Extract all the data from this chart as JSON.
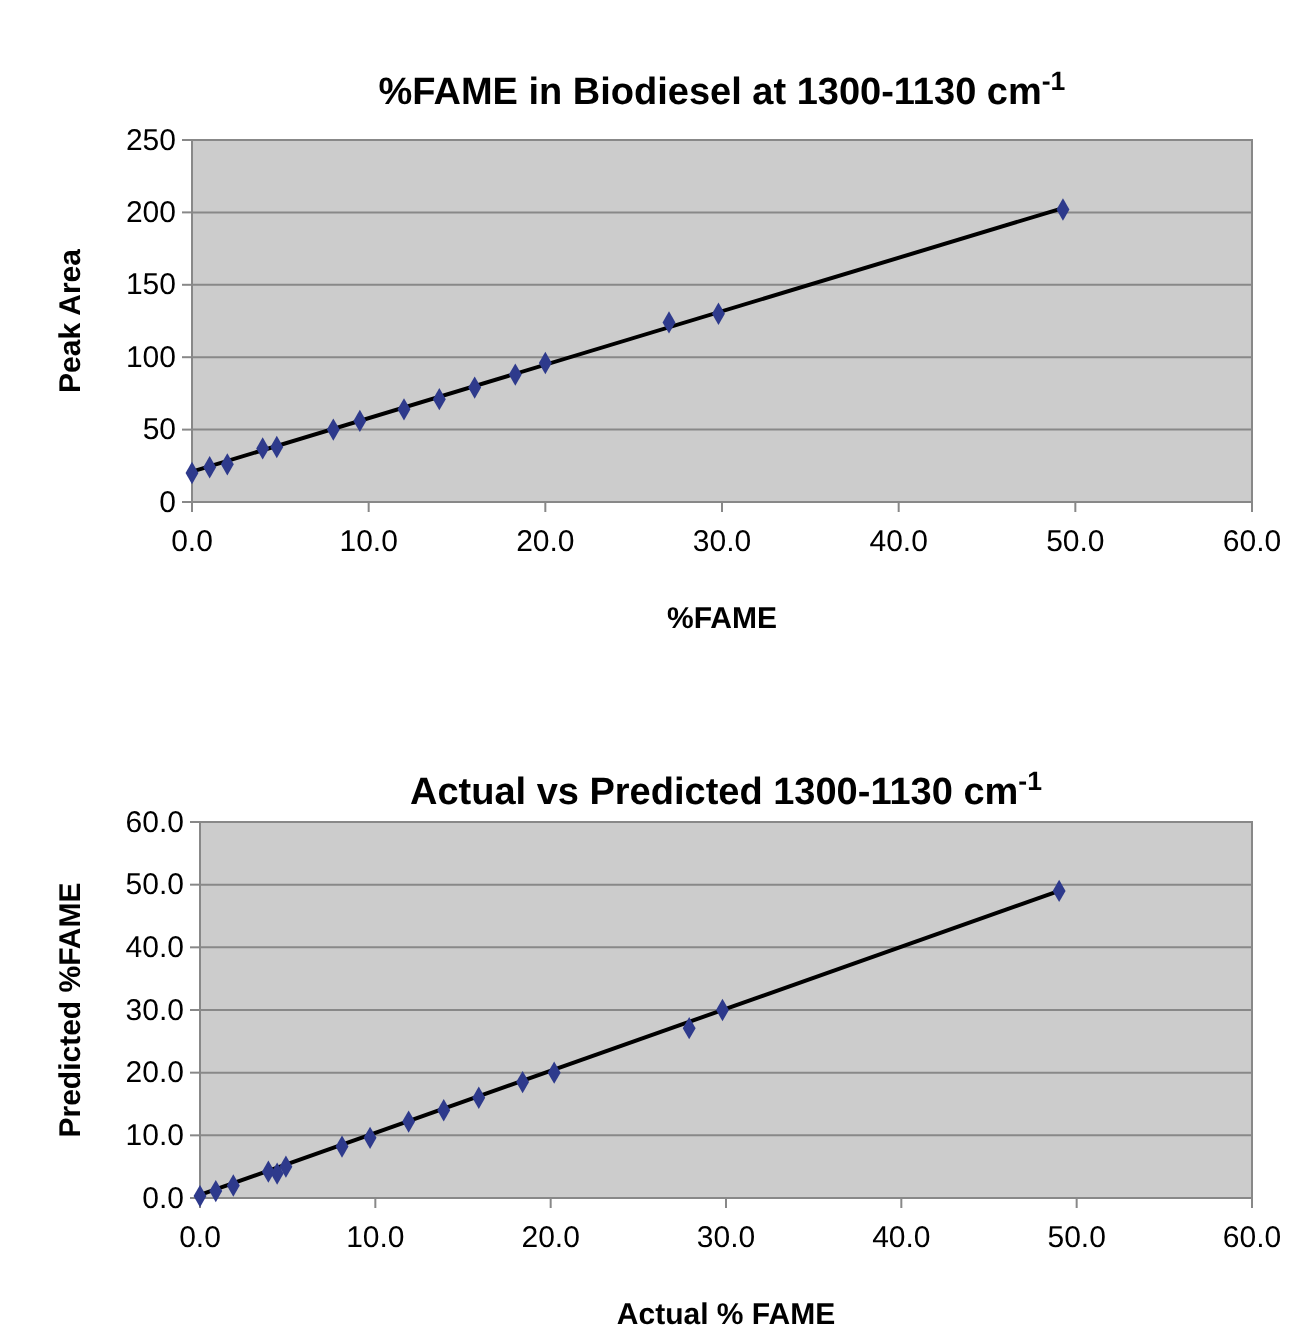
{
  "chart_data": [
    {
      "type": "scatter",
      "title": "%FAME in Biodiesel at 1300-1130 cm$^{-1}$",
      "xlabel": "%FAME",
      "ylabel": "Peak Area",
      "grid": "y",
      "xlim": [
        0,
        60
      ],
      "xticks": [
        {
          "value": 0,
          "label": "0.0"
        },
        {
          "value": 10,
          "label": "10.0"
        },
        {
          "value": 20,
          "label": "20.0"
        },
        {
          "value": 30,
          "label": "30.0"
        },
        {
          "value": 40,
          "label": "40.0"
        },
        {
          "value": 50,
          "label": "50.0"
        },
        {
          "value": 60,
          "label": "60.0"
        }
      ],
      "ylim": [
        0,
        250
      ],
      "yticks": [
        0,
        50,
        100,
        150,
        200,
        250
      ],
      "series": [
        {
          "marker": "diamond",
          "color": "#2e3a8c",
          "x": [
            0,
            1,
            2,
            4,
            4.8,
            8,
            9.5,
            12,
            14,
            16,
            18.3,
            20,
            27,
            29.8,
            49.3
          ],
          "values": [
            20,
            24,
            26,
            37,
            38,
            50,
            56,
            64,
            71,
            79,
            88,
            96,
            124,
            130,
            202
          ]
        },
        {
          "type": "line",
          "marker": "none",
          "color": "#000000",
          "x": [
            0,
            49.3
          ],
          "values": [
            21,
            203
          ]
        }
      ]
    },
    {
      "type": "scatter",
      "title": "Actual vs Predicted 1300-1130 cm$^{-1}$",
      "xlabel": "Actual % FAME",
      "ylabel": "Predicted %FAME",
      "grid": "y",
      "xlim": [
        0,
        60
      ],
      "xticks": [
        {
          "value": 0,
          "label": "0.0"
        },
        {
          "value": 10,
          "label": "10.0"
        },
        {
          "value": 20,
          "label": "20.0"
        },
        {
          "value": 30,
          "label": "30.0"
        },
        {
          "value": 40,
          "label": "40.0"
        },
        {
          "value": 50,
          "label": "50.0"
        },
        {
          "value": 60,
          "label": "60.0"
        }
      ],
      "ylim": [
        0,
        60
      ],
      "yticks": [
        {
          "value": 0,
          "label": "0.0"
        },
        {
          "value": 10,
          "label": "10.0"
        },
        {
          "value": 20,
          "label": "20.0"
        },
        {
          "value": 30,
          "label": "30.0"
        },
        {
          "value": 40,
          "label": "40.0"
        },
        {
          "value": 50,
          "label": "50.0"
        },
        {
          "value": 60,
          "label": "60.0"
        }
      ],
      "series": [
        {
          "marker": "diamond",
          "color": "#2e3a8c",
          "x": [
            0,
            0.9,
            1.9,
            3.9,
            4.4,
            4.9,
            8.1,
            9.7,
            11.9,
            13.9,
            15.9,
            18.4,
            20.2,
            27.9,
            29.8,
            49
          ],
          "values": [
            0.3,
            1.1,
            2,
            4.2,
            3.9,
            5,
            8.2,
            9.6,
            12.2,
            14,
            16,
            18.5,
            20,
            27.1,
            30,
            49
          ]
        },
        {
          "type": "line",
          "marker": "none",
          "color": "#000000",
          "x": [
            0,
            49
          ],
          "values": [
            0.5,
            49
          ]
        }
      ]
    }
  ]
}
